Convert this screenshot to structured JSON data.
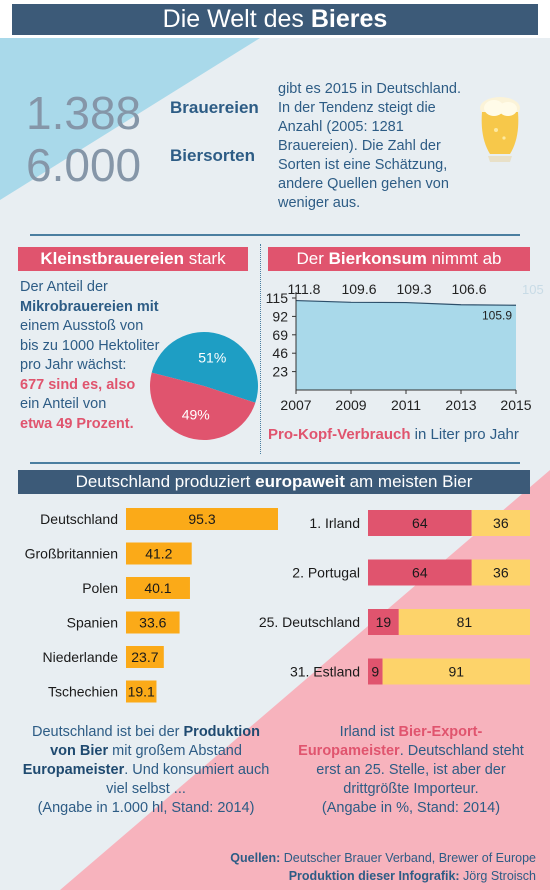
{
  "header": {
    "title_prefix": "Die Welt des ",
    "title_bold": "Bieres"
  },
  "stats": {
    "breweries_value": "1.388",
    "breweries_label": "Brauereien",
    "types_value": "6.000",
    "types_label": "Biersorten",
    "text_lines": [
      "gibt es 2015 in Deutschland.",
      "In der Tendenz steigt die",
      "Anzahl (2005: 1281",
      "Brauereien). Die Zahl der",
      "Sorten ist eine Schätzung,",
      "andere Quellen gehen von",
      "weniger aus."
    ]
  },
  "micro": {
    "header_bold": "Kleinstbrauereien",
    "header_rest": " stark",
    "text_lines": [
      "Der Anteil der",
      "Mikrobrauereien mit",
      "einem Ausstoß von",
      "bis zu 1000 Hektoliter",
      "pro Jahr wächst:",
      "677 sind es, also",
      "ein Anteil von",
      "etwa 49 Prozent."
    ]
  },
  "consumption": {
    "header_prefix": "Der ",
    "header_bold": "Bierkonsum",
    "header_rest": " nimmt ab",
    "caption_bold": "Pro-Kopf-Verbrauch",
    "caption_rest": " in Liter pro Jahr",
    "extra_label": "105"
  },
  "europe": {
    "header_prefix": "Deutschland produziert ",
    "header_bold": "europaweit",
    "header_rest": " am meisten Bier",
    "left_text_lines": [
      "Deutschland ist bei der Produktion",
      "von Bier mit großem Abstand",
      "Europameister. Und konsumiert auch",
      "viel selbst ...",
      "(Angabe in 1.000 hl, Stand: 2014)"
    ],
    "right_text_lines": [
      "Irland ist Bier-Export-",
      "Europameister. Deutschland steht",
      "erst an 25. Stelle, ist aber der",
      "drittgrößte Importeur.",
      "(Angabe in %, Stand: 2014)"
    ]
  },
  "sources": {
    "line1_bold": "Quellen:",
    "line1_rest": " Deutscher Brauer Verband, Brewer of Europe",
    "line2_bold": "Produktion dieser Infografik:",
    "line2_rest": " Jörg Stroisch"
  },
  "colors": {
    "pink": "#e0546e",
    "blue_dark": "#3c5a78",
    "orange": "#fbaa18",
    "yellow": "#fdd36a",
    "teal": "#1e9ec4",
    "light_blue": "#a9d9ea",
    "light_pink": "#f7b3bd"
  },
  "chart_data": [
    {
      "type": "pie",
      "labels": [
        "51%",
        "49%"
      ],
      "values": [
        51,
        49
      ],
      "colors": [
        "#1e9ec4",
        "#e0546e"
      ]
    },
    {
      "type": "area",
      "x": [
        2007,
        2009,
        2011,
        2013,
        2015
      ],
      "values": [
        111.8,
        109.6,
        109.3,
        106.6,
        105.9
      ],
      "data_labels": [
        "111.8",
        "109.6",
        "109.3",
        "106.6",
        "105.9"
      ],
      "yticks": [
        23,
        46,
        69,
        92,
        115
      ],
      "ylim": [
        0,
        115
      ],
      "xlim": [
        2007,
        2015
      ]
    },
    {
      "type": "bar",
      "orientation": "horizontal",
      "categories": [
        "Deutschland",
        "Großbritannien",
        "Polen",
        "Spanien",
        "Niederlande",
        "Tschechien"
      ],
      "values": [
        95.3,
        41.2,
        40.1,
        33.6,
        23.7,
        19.1
      ],
      "data_labels": [
        "95.3",
        "41.2",
        "40.1",
        "33.6",
        "23.7",
        "19.1"
      ]
    },
    {
      "type": "bar",
      "orientation": "horizontal",
      "stacked": true,
      "categories": [
        "1. Irland",
        "2. Portugal",
        "25. Deutschland",
        "31. Estland"
      ],
      "series": [
        {
          "values": [
            64,
            64,
            19,
            9
          ],
          "data_labels": [
            "64",
            "64",
            "19",
            "9"
          ]
        },
        {
          "values": [
            36,
            36,
            81,
            91
          ],
          "data_labels": [
            "36",
            "36",
            "81",
            "91"
          ]
        }
      ]
    }
  ]
}
